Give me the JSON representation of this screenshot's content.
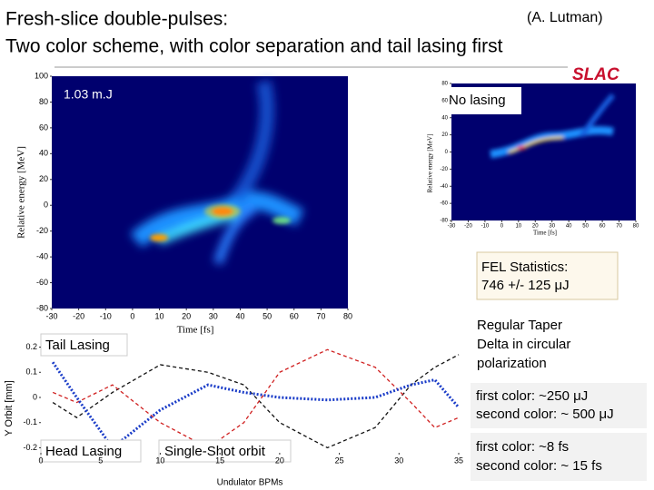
{
  "header": {
    "title_line1": "Fresh-slice double-pulses:",
    "author": "(A. Lutman)",
    "title_line2": "Two color scheme, with color separation and tail lasing first",
    "logo": "SLAC"
  },
  "main_plot": {
    "annotation": "1.03  m.J",
    "y_label": "Relative energy [MeV]",
    "x_label": "Time [fs]",
    "ylim": [
      -80,
      100
    ],
    "yticks": [
      100,
      80,
      60,
      40,
      20,
      0,
      -20,
      -40,
      -60,
      -80
    ],
    "xlim": [
      -30,
      80
    ],
    "xticks": [
      -30,
      -20,
      -10,
      0,
      10,
      20,
      30,
      40,
      50,
      60,
      70,
      80
    ]
  },
  "inset_plot": {
    "label": "No lasing",
    "y_label": "Relative energy [MeV]",
    "x_label": "Time [fs]",
    "ylim": [
      -80,
      80
    ],
    "yticks": [
      80,
      60,
      40,
      20,
      0,
      -20,
      -40,
      -60,
      -80
    ],
    "xlim": [
      -30,
      80
    ],
    "xticks": [
      -30,
      -20,
      -10,
      0,
      10,
      20,
      30,
      40,
      50,
      60,
      70,
      80
    ]
  },
  "fel_stats": {
    "line1": "FEL Statistics:",
    "line2": "746 +/- 125 μJ"
  },
  "taper_note": [
    "Regular Taper",
    "Delta in circular",
    "polarization"
  ],
  "energy_box": [
    "first color: ~250 μJ",
    "second color: ~ 500 μJ"
  ],
  "duration_box": [
    "first color: ~8 fs",
    "second color: ~ 15 fs"
  ],
  "orbit_plot": {
    "type": "line",
    "y_label": "Y Orbit [mm]",
    "x_label": "Undulator BPMs",
    "legend_top": "Tail Lasing",
    "legend_bottom": "Head Lasing",
    "legend_orbit": "Single-Shot orbit",
    "xlim": [
      0,
      35
    ],
    "xticks": [
      0,
      5,
      10,
      15,
      20,
      25,
      30,
      35
    ],
    "ylim": [
      -0.22,
      0.22
    ],
    "yticks": [
      0.2,
      0.1,
      0,
      -0.1,
      -0.2
    ],
    "x": [
      1,
      3,
      6,
      10,
      14,
      17,
      20,
      24,
      28,
      31,
      33,
      35
    ],
    "series": [
      {
        "color": "#111111",
        "dash": "4,3",
        "values": [
          -0.02,
          -0.08,
          0.02,
          0.13,
          0.1,
          0.05,
          -0.1,
          -0.2,
          -0.12,
          0.05,
          0.12,
          0.17
        ]
      },
      {
        "color": "#d02020",
        "dash": "4,3",
        "values": [
          0.02,
          -0.02,
          0.05,
          -0.1,
          -0.2,
          -0.1,
          0.1,
          0.19,
          0.12,
          -0.02,
          -0.12,
          -0.08
        ]
      },
      {
        "color": "#1a3cc8",
        "dash": "2,2",
        "values": [
          0.14,
          0.0,
          -0.2,
          -0.05,
          0.05,
          0.02,
          0.0,
          -0.01,
          0.0,
          0.05,
          0.07,
          -0.04
        ]
      }
    ]
  }
}
